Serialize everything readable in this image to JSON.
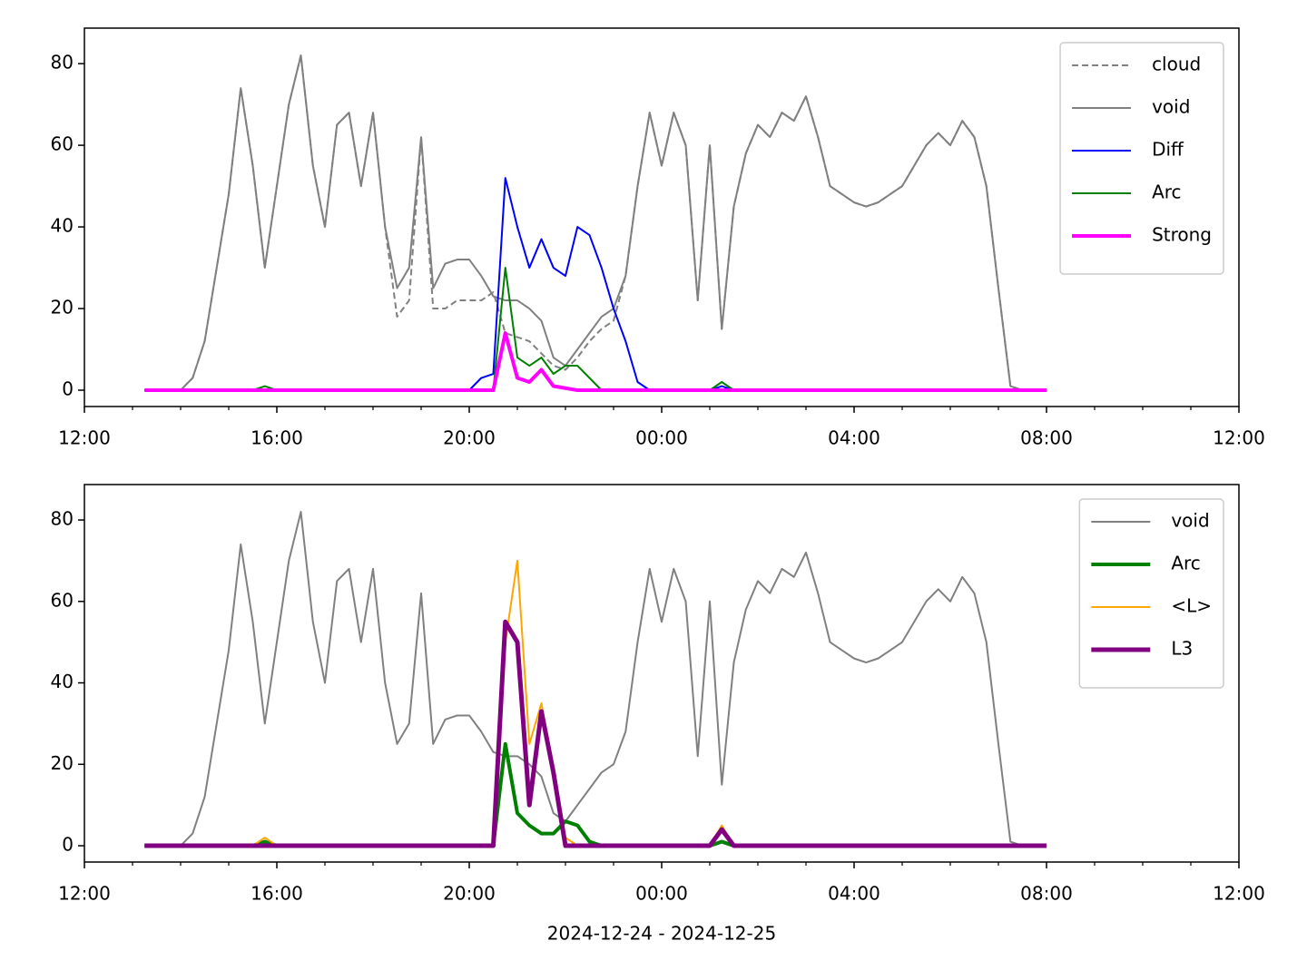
{
  "chart_data": [
    {
      "type": "line",
      "x": [
        13.25,
        13.5,
        13.75,
        14,
        14.25,
        14.5,
        14.75,
        15,
        15.25,
        15.5,
        15.75,
        16,
        16.25,
        16.5,
        16.75,
        17,
        17.25,
        17.5,
        17.75,
        18,
        18.25,
        18.5,
        18.75,
        19,
        19.25,
        19.5,
        19.75,
        20,
        20.25,
        20.5,
        20.75,
        21,
        21.25,
        21.5,
        21.75,
        22,
        22.25,
        22.5,
        22.75,
        23,
        23.25,
        23.5,
        23.75,
        24,
        24.25,
        24.5,
        24.75,
        25,
        25.25,
        25.5,
        25.75,
        26,
        26.25,
        26.5,
        26.75,
        27,
        27.25,
        27.5,
        27.75,
        28,
        28.25,
        28.5,
        28.75,
        29,
        29.25,
        29.5,
        29.75,
        30,
        30.25,
        30.5,
        30.75,
        31,
        31.25,
        31.5,
        31.75,
        32
      ],
      "series": [
        {
          "name": "cloud",
          "color": "#808080",
          "dash": true,
          "width": 2,
          "values": [
            0,
            0,
            0,
            0,
            3,
            12,
            30,
            48,
            74,
            55,
            30,
            50,
            70,
            82,
            55,
            40,
            65,
            68,
            50,
            68,
            40,
            18,
            22,
            62,
            20,
            20,
            22,
            22,
            22,
            24,
            14,
            13,
            12,
            9,
            6,
            5,
            8,
            12,
            15,
            17,
            28,
            50,
            68,
            55,
            68,
            60,
            22,
            60,
            15,
            45,
            58,
            65,
            62,
            68,
            66,
            72,
            62,
            50,
            48,
            46,
            45,
            46,
            48,
            50,
            55,
            60,
            63,
            60,
            66,
            62,
            50,
            25,
            1,
            0,
            0,
            0
          ]
        },
        {
          "name": "void",
          "color": "#808080",
          "width": 2,
          "values": [
            0,
            0,
            0,
            0,
            3,
            12,
            30,
            48,
            74,
            55,
            30,
            50,
            70,
            82,
            55,
            40,
            65,
            68,
            50,
            68,
            40,
            25,
            30,
            62,
            25,
            31,
            32,
            32,
            28,
            23,
            22,
            22,
            20,
            17,
            8,
            6,
            10,
            14,
            18,
            20,
            28,
            50,
            68,
            55,
            68,
            60,
            22,
            60,
            15,
            45,
            58,
            65,
            62,
            68,
            66,
            72,
            62,
            50,
            48,
            46,
            45,
            46,
            48,
            50,
            55,
            60,
            63,
            60,
            66,
            62,
            50,
            25,
            1,
            0,
            0,
            0
          ]
        },
        {
          "name": "Diff",
          "color": "#0000ff",
          "width": 2,
          "values": [
            0,
            0,
            0,
            0,
            0,
            0,
            0,
            0,
            0,
            0,
            0,
            0,
            0,
            0,
            0,
            0,
            0,
            0,
            0,
            0,
            0,
            0,
            0,
            0,
            0,
            0,
            0,
            0,
            3,
            4,
            52,
            40,
            30,
            37,
            30,
            28,
            40,
            38,
            30,
            20,
            12,
            2,
            0,
            0,
            0,
            0,
            0,
            0,
            1,
            0,
            0,
            0,
            0,
            0,
            0,
            0,
            0,
            0,
            0,
            0,
            0,
            0,
            0,
            0,
            0,
            0,
            0,
            0,
            0,
            0,
            0,
            0,
            0,
            0,
            0,
            0
          ]
        },
        {
          "name": "Arc",
          "color": "#008000",
          "width": 2,
          "values": [
            0,
            0,
            0,
            0,
            0,
            0,
            0,
            0,
            0,
            0,
            1,
            0,
            0,
            0,
            0,
            0,
            0,
            0,
            0,
            0,
            0,
            0,
            0,
            0,
            0,
            0,
            0,
            0,
            0,
            0,
            30,
            8,
            6,
            8,
            4,
            6,
            6,
            3,
            0,
            0,
            0,
            0,
            0,
            0,
            0,
            0,
            0,
            0,
            2,
            0,
            0,
            0,
            0,
            0,
            0,
            0,
            0,
            0,
            0,
            0,
            0,
            0,
            0,
            0,
            0,
            0,
            0,
            0,
            0,
            0,
            0,
            0,
            0,
            0,
            0,
            0
          ]
        },
        {
          "name": "Strong",
          "color": "#ff00ff",
          "width": 4,
          "values": [
            0,
            0,
            0,
            0,
            0,
            0,
            0,
            0,
            0,
            0,
            0,
            0,
            0,
            0,
            0,
            0,
            0,
            0,
            0,
            0,
            0,
            0,
            0,
            0,
            0,
            0,
            0,
            0,
            0,
            0,
            14,
            3,
            2,
            5,
            1,
            0.5,
            0,
            0,
            0,
            0,
            0,
            0,
            0,
            0,
            0,
            0,
            0,
            0,
            0,
            0,
            0,
            0,
            0,
            0,
            0,
            0,
            0,
            0,
            0,
            0,
            0,
            0,
            0,
            0,
            0,
            0,
            0,
            0,
            0,
            0,
            0,
            0,
            0,
            0,
            0,
            0
          ]
        }
      ],
      "xlim": [
        12,
        36
      ],
      "xticks": [
        {
          "value": 12,
          "label": "12:00"
        },
        {
          "value": 16,
          "label": "16:00"
        },
        {
          "value": 20,
          "label": "20:00"
        },
        {
          "value": 24,
          "label": "00:00"
        },
        {
          "value": 28,
          "label": "04:00"
        },
        {
          "value": 32,
          "label": "08:00"
        },
        {
          "value": 36,
          "label": "12:00"
        }
      ],
      "xminorticks": [
        13,
        14,
        15,
        17,
        18,
        19,
        21,
        22,
        23,
        25,
        26,
        27,
        29,
        30,
        31,
        33,
        34,
        35
      ],
      "ylim": [
        -4,
        88.7
      ],
      "yticks": [
        0,
        20,
        40,
        60,
        80
      ],
      "legend": "upper right"
    },
    {
      "type": "line",
      "x": [
        13.25,
        13.5,
        13.75,
        14,
        14.25,
        14.5,
        14.75,
        15,
        15.25,
        15.5,
        15.75,
        16,
        16.25,
        16.5,
        16.75,
        17,
        17.25,
        17.5,
        17.75,
        18,
        18.25,
        18.5,
        18.75,
        19,
        19.25,
        19.5,
        19.75,
        20,
        20.25,
        20.5,
        20.75,
        21,
        21.25,
        21.5,
        21.75,
        22,
        22.25,
        22.5,
        22.75,
        23,
        23.25,
        23.5,
        23.75,
        24,
        24.25,
        24.5,
        24.75,
        25,
        25.25,
        25.5,
        25.75,
        26,
        26.25,
        26.5,
        26.75,
        27,
        27.25,
        27.5,
        27.75,
        28,
        28.25,
        28.5,
        28.75,
        29,
        29.25,
        29.5,
        29.75,
        30,
        30.25,
        30.5,
        30.75,
        31,
        31.25,
        31.5,
        31.75,
        32
      ],
      "series": [
        {
          "name": "void",
          "color": "#808080",
          "width": 2,
          "values": [
            0,
            0,
            0,
            0,
            3,
            12,
            30,
            48,
            74,
            55,
            30,
            50,
            70,
            82,
            55,
            40,
            65,
            68,
            50,
            68,
            40,
            25,
            30,
            62,
            25,
            31,
            32,
            32,
            28,
            23,
            22,
            22,
            20,
            17,
            8,
            6,
            10,
            14,
            18,
            20,
            28,
            50,
            68,
            55,
            68,
            60,
            22,
            60,
            15,
            45,
            58,
            65,
            62,
            68,
            66,
            72,
            62,
            50,
            48,
            46,
            45,
            46,
            48,
            50,
            55,
            60,
            63,
            60,
            66,
            62,
            50,
            25,
            1,
            0,
            0,
            0
          ]
        },
        {
          "name": "Arc",
          "color": "#008000",
          "width": 4,
          "values": [
            0,
            0,
            0,
            0,
            0,
            0,
            0,
            0,
            0,
            0,
            1,
            0,
            0,
            0,
            0,
            0,
            0,
            0,
            0,
            0,
            0,
            0,
            0,
            0,
            0,
            0,
            0,
            0,
            0,
            0,
            25,
            8,
            5,
            3,
            3,
            6,
            5,
            1,
            0,
            0,
            0,
            0,
            0,
            0,
            0,
            0,
            0,
            0,
            1,
            0,
            0,
            0,
            0,
            0,
            0,
            0,
            0,
            0,
            0,
            0,
            0,
            0,
            0,
            0,
            0,
            0,
            0,
            0,
            0,
            0,
            0,
            0,
            0,
            0,
            0,
            0
          ]
        },
        {
          "name": "<L>",
          "color": "#ffa500",
          "width": 2,
          "values": [
            0,
            0,
            0,
            0,
            0,
            0,
            0,
            0,
            0,
            0,
            2,
            0,
            0,
            0,
            0,
            0,
            0,
            0,
            0,
            0,
            0,
            0,
            0,
            0,
            0,
            0,
            0,
            0,
            0,
            0,
            50,
            70,
            25,
            35,
            18,
            2,
            0,
            0,
            0,
            0,
            0,
            0,
            0,
            0,
            0,
            0,
            0,
            0,
            5,
            0,
            0,
            0,
            0,
            0,
            0,
            0,
            0,
            0,
            0,
            0,
            0,
            0,
            0,
            0,
            0,
            0,
            0,
            0,
            0,
            0,
            0,
            0,
            0,
            0,
            0,
            0
          ]
        },
        {
          "name": "L3",
          "color": "#800080",
          "width": 5,
          "values": [
            0,
            0,
            0,
            0,
            0,
            0,
            0,
            0,
            0,
            0,
            0,
            0,
            0,
            0,
            0,
            0,
            0,
            0,
            0,
            0,
            0,
            0,
            0,
            0,
            0,
            0,
            0,
            0,
            0,
            0,
            55,
            50,
            10,
            33,
            18,
            0,
            0,
            0,
            0,
            0,
            0,
            0,
            0,
            0,
            0,
            0,
            0,
            0,
            4,
            0,
            0,
            0,
            0,
            0,
            0,
            0,
            0,
            0,
            0,
            0,
            0,
            0,
            0,
            0,
            0,
            0,
            0,
            0,
            0,
            0,
            0,
            0,
            0,
            0,
            0,
            0
          ]
        }
      ],
      "xlim": [
        12,
        36
      ],
      "xticks": [
        {
          "value": 12,
          "label": "12:00"
        },
        {
          "value": 16,
          "label": "16:00"
        },
        {
          "value": 20,
          "label": "20:00"
        },
        {
          "value": 24,
          "label": "00:00"
        },
        {
          "value": 28,
          "label": "04:00"
        },
        {
          "value": 32,
          "label": "08:00"
        },
        {
          "value": 36,
          "label": "12:00"
        }
      ],
      "xminorticks": [
        13,
        14,
        15,
        17,
        18,
        19,
        21,
        22,
        23,
        25,
        26,
        27,
        29,
        30,
        31,
        33,
        34,
        35
      ],
      "ylim": [
        -4,
        88.7
      ],
      "yticks": [
        0,
        20,
        40,
        60,
        80
      ],
      "xlabel": "2024-12-24 - 2024-12-25",
      "legend": "upper right"
    }
  ]
}
